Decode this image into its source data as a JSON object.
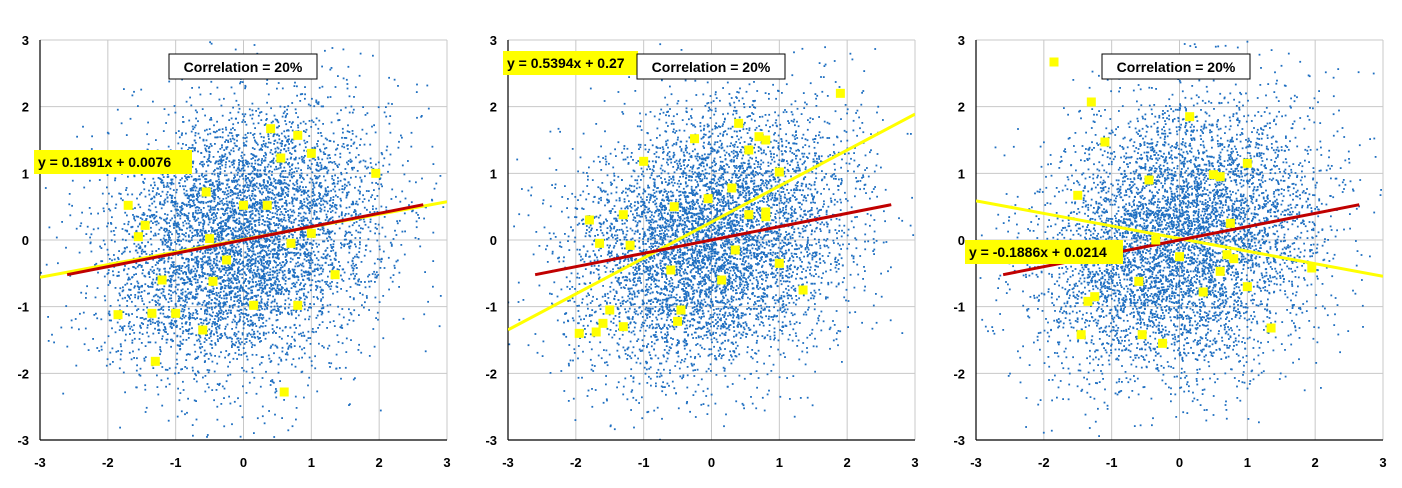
{
  "colors": {
    "cloud": "#1f6fc1",
    "highlight": "#ffff00",
    "reference_line": "#c00000",
    "grid": "#c8c8c8",
    "background": "#ffffff"
  },
  "chart_data": [
    {
      "type": "scatter",
      "title": "",
      "xlim": [
        -3,
        3
      ],
      "ylim": [
        -3,
        3
      ],
      "x_ticks": [
        "-3",
        "-2",
        "-1",
        "0",
        "1",
        "2",
        "3"
      ],
      "y_ticks": [
        "3",
        "2",
        "1",
        "0",
        "-1",
        "-2",
        "-3"
      ],
      "grid": true,
      "annotation": "Correlation = 20%",
      "equation_label": "y = 0.1891x + 0.0076",
      "population_correlation": 0.2,
      "population_point_count": 6000,
      "population_line": {
        "slope": 0.2,
        "intercept": 0.0,
        "x_range": [
          -2.6,
          2.65
        ]
      },
      "sample_line": {
        "slope": 0.1891,
        "intercept": 0.0076,
        "x_range": [
          -3,
          3
        ]
      },
      "sample_points": [
        {
          "x": 0.4,
          "y": 1.67
        },
        {
          "x": 0.8,
          "y": 1.57
        },
        {
          "x": 1.0,
          "y": 1.3
        },
        {
          "x": 0.55,
          "y": 1.23
        },
        {
          "x": 1.95,
          "y": 1.0
        },
        {
          "x": -0.55,
          "y": 0.72
        },
        {
          "x": -1.7,
          "y": 0.52
        },
        {
          "x": 0.0,
          "y": 0.52
        },
        {
          "x": 0.35,
          "y": 0.52
        },
        {
          "x": -1.45,
          "y": 0.22
        },
        {
          "x": -1.55,
          "y": 0.05
        },
        {
          "x": -0.5,
          "y": 0.02
        },
        {
          "x": 1.0,
          "y": 0.1
        },
        {
          "x": 0.7,
          "y": -0.05
        },
        {
          "x": -0.25,
          "y": -0.3
        },
        {
          "x": 1.35,
          "y": -0.52
        },
        {
          "x": -1.2,
          "y": -0.6
        },
        {
          "x": -0.45,
          "y": -0.62
        },
        {
          "x": 0.15,
          "y": -0.98
        },
        {
          "x": 0.8,
          "y": -0.98
        },
        {
          "x": -1.85,
          "y": -1.12
        },
        {
          "x": -1.35,
          "y": -1.1
        },
        {
          "x": -1.0,
          "y": -1.1
        },
        {
          "x": -0.6,
          "y": -1.35
        },
        {
          "x": -1.3,
          "y": -1.82
        },
        {
          "x": 0.6,
          "y": -2.28
        }
      ]
    },
    {
      "type": "scatter",
      "title": "",
      "xlim": [
        -3,
        3
      ],
      "ylim": [
        -3,
        3
      ],
      "x_ticks": [
        "-3",
        "-2",
        "-1",
        "0",
        "1",
        "2",
        "3"
      ],
      "y_ticks": [
        "3",
        "2",
        "1",
        "0",
        "-1",
        "-2",
        "-3"
      ],
      "grid": true,
      "annotation": "Correlation = 20%",
      "equation_label": "y = 0.5394x + 0.27",
      "population_correlation": 0.2,
      "population_point_count": 6000,
      "population_line": {
        "slope": 0.2,
        "intercept": 0.0,
        "x_range": [
          -2.6,
          2.65
        ]
      },
      "sample_line": {
        "slope": 0.5394,
        "intercept": 0.27,
        "x_range": [
          -3,
          3
        ]
      },
      "sample_points": [
        {
          "x": 1.9,
          "y": 2.2
        },
        {
          "x": 0.4,
          "y": 1.75
        },
        {
          "x": -0.25,
          "y": 1.52
        },
        {
          "x": 0.7,
          "y": 1.55
        },
        {
          "x": 0.8,
          "y": 1.5
        },
        {
          "x": 0.55,
          "y": 1.35
        },
        {
          "x": -1.0,
          "y": 1.18
        },
        {
          "x": 1.0,
          "y": 1.02
        },
        {
          "x": 0.3,
          "y": 0.78
        },
        {
          "x": -0.05,
          "y": 0.62
        },
        {
          "x": -0.55,
          "y": 0.5
        },
        {
          "x": 0.8,
          "y": 0.42
        },
        {
          "x": 0.8,
          "y": 0.35
        },
        {
          "x": 0.55,
          "y": 0.38
        },
        {
          "x": -1.3,
          "y": 0.38
        },
        {
          "x": -1.8,
          "y": 0.3
        },
        {
          "x": -1.65,
          "y": -0.05
        },
        {
          "x": -1.2,
          "y": -0.08
        },
        {
          "x": 0.35,
          "y": -0.15
        },
        {
          "x": 1.0,
          "y": -0.35
        },
        {
          "x": -0.6,
          "y": -0.45
        },
        {
          "x": 0.15,
          "y": -0.6
        },
        {
          "x": 1.35,
          "y": -0.75
        },
        {
          "x": -1.5,
          "y": -1.05
        },
        {
          "x": -0.45,
          "y": -1.05
        },
        {
          "x": -1.6,
          "y": -1.25
        },
        {
          "x": -1.3,
          "y": -1.3
        },
        {
          "x": -0.5,
          "y": -1.22
        },
        {
          "x": -1.95,
          "y": -1.4
        },
        {
          "x": -1.7,
          "y": -1.38
        }
      ]
    },
    {
      "type": "scatter",
      "title": "",
      "xlim": [
        -3,
        3
      ],
      "ylim": [
        -3,
        3
      ],
      "x_ticks": [
        "-3",
        "-2",
        "-1",
        "0",
        "1",
        "2",
        "3"
      ],
      "y_ticks": [
        "3",
        "2",
        "1",
        "0",
        "-1",
        "-2",
        "-3"
      ],
      "grid": true,
      "annotation": "Correlation = 20%",
      "equation_label": "y = -0.1886x + 0.0214",
      "population_correlation": 0.2,
      "population_point_count": 6000,
      "population_line": {
        "slope": 0.2,
        "intercept": 0.0,
        "x_range": [
          -2.6,
          2.65
        ]
      },
      "sample_line": {
        "slope": -0.1886,
        "intercept": 0.0214,
        "x_range": [
          -3,
          3
        ]
      },
      "sample_points": [
        {
          "x": -1.85,
          "y": 2.67
        },
        {
          "x": -1.3,
          "y": 2.07
        },
        {
          "x": 0.15,
          "y": 1.85
        },
        {
          "x": -1.1,
          "y": 1.47
        },
        {
          "x": 1.0,
          "y": 1.15
        },
        {
          "x": 0.5,
          "y": 0.98
        },
        {
          "x": 0.6,
          "y": 0.95
        },
        {
          "x": -0.45,
          "y": 0.9
        },
        {
          "x": -1.5,
          "y": 0.67
        },
        {
          "x": 0.75,
          "y": 0.25
        },
        {
          "x": -0.35,
          "y": 0.0
        },
        {
          "x": 0.0,
          "y": -0.25
        },
        {
          "x": 0.8,
          "y": -0.28
        },
        {
          "x": 0.7,
          "y": -0.22
        },
        {
          "x": 1.95,
          "y": -0.42
        },
        {
          "x": 0.6,
          "y": -0.47
        },
        {
          "x": -0.6,
          "y": -0.62
        },
        {
          "x": 1.0,
          "y": -0.7
        },
        {
          "x": 0.35,
          "y": -0.78
        },
        {
          "x": -1.25,
          "y": -0.85
        },
        {
          "x": -1.35,
          "y": -0.92
        },
        {
          "x": 1.35,
          "y": -1.32
        },
        {
          "x": -1.45,
          "y": -1.42
        },
        {
          "x": -0.55,
          "y": -1.42
        },
        {
          "x": -0.25,
          "y": -1.55
        }
      ]
    }
  ]
}
